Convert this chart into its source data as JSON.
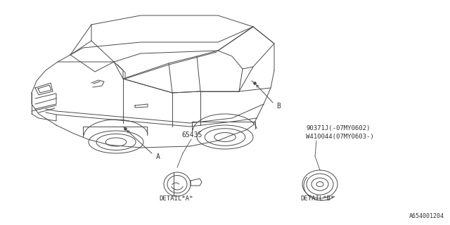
{
  "background_color": "#ffffff",
  "line_color": "#4a4a4a",
  "text_color": "#333333",
  "part_number_main": "65435",
  "part_number_b1": "90371J(-07MY0602)",
  "part_number_b2": "W410044(07MY0603-)",
  "label_a": "A",
  "label_b": "B",
  "detail_a_label": "DETAIL*A*",
  "detail_b_label": "DETAIL*B*",
  "diagram_id": "A654001204",
  "font_size_small": 7,
  "font_size_label": 7,
  "font_size_detail": 7
}
